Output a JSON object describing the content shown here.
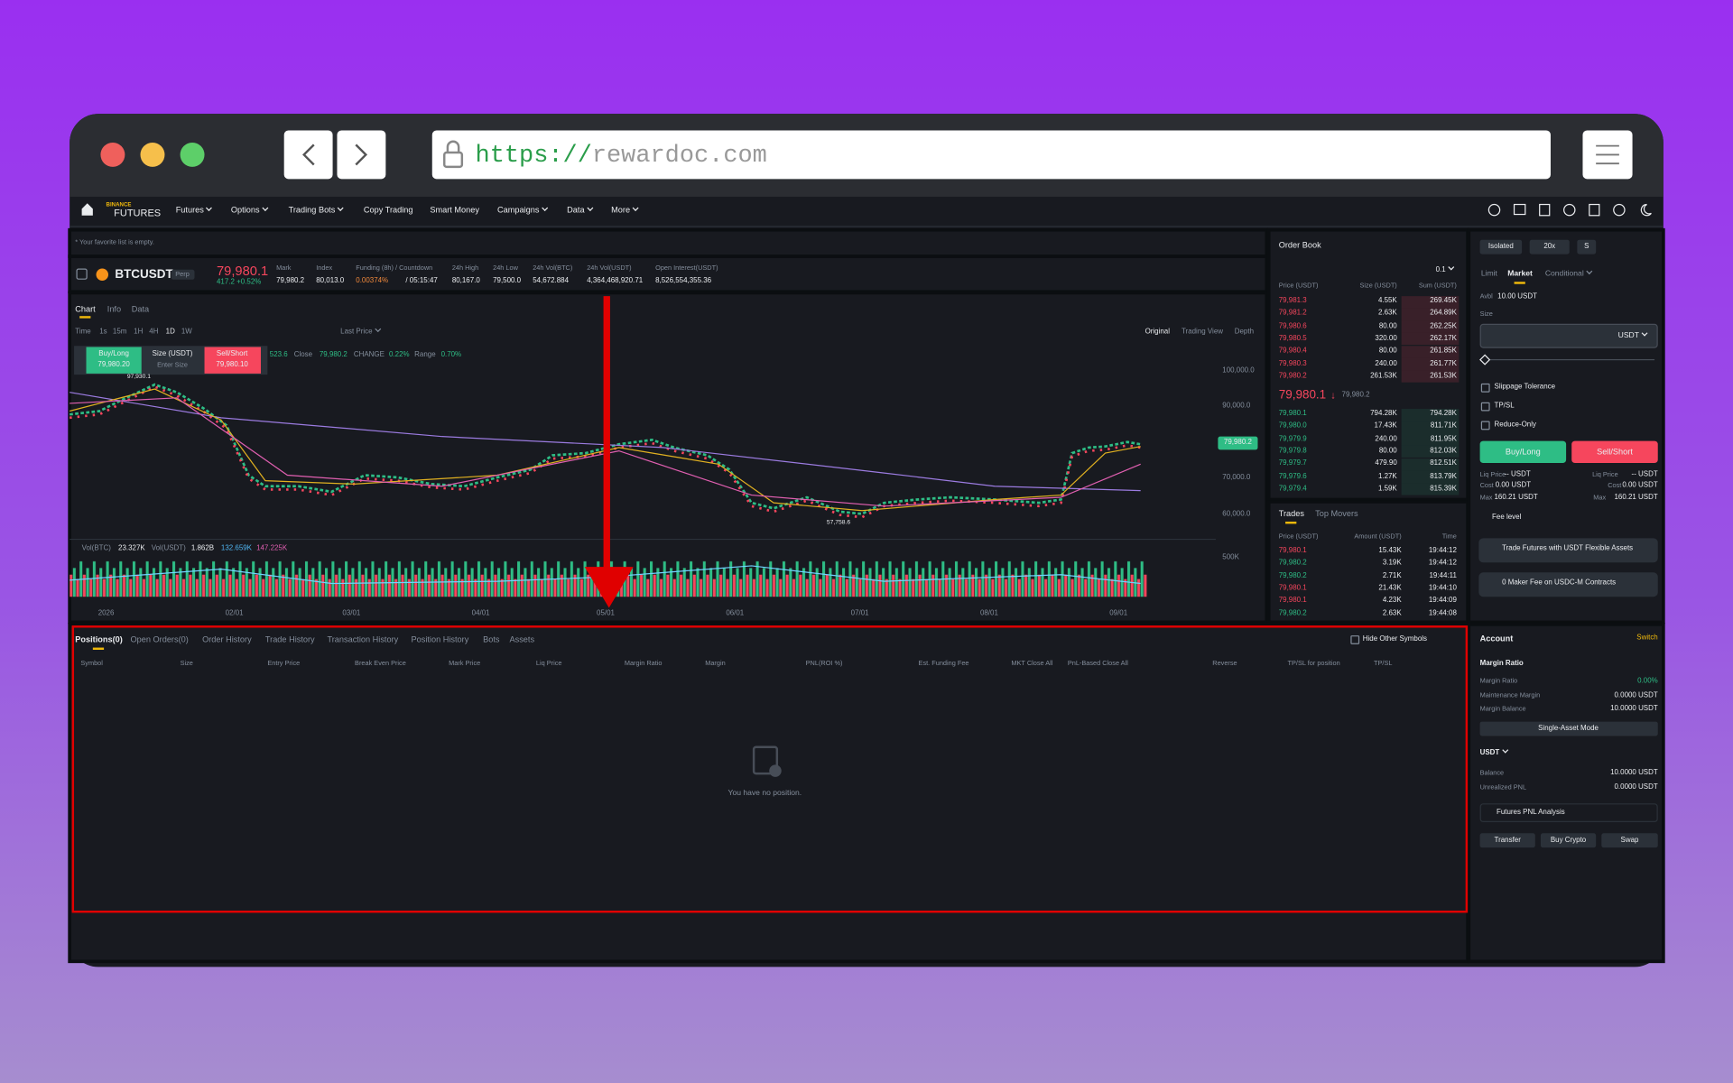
{
  "browser": {
    "url_scheme": "https://",
    "url_host": "rewardoc.com"
  },
  "nav": {
    "logo_top": "BINANCE",
    "logo_bottom": "FUTURES",
    "items": [
      "Futures",
      "Options",
      "Trading Bots",
      "Copy Trading",
      "Smart Money",
      "Campaigns",
      "Data",
      "More"
    ]
  },
  "favorites_note": "* Your favorite list is empty.",
  "ticker": {
    "symbol": "BTCUSDT",
    "badge": "Perp",
    "price": "79,980.1",
    "change": "417.2 +0.52%",
    "stats": [
      {
        "label": "Mark",
        "value": "79,980.2"
      },
      {
        "label": "Index",
        "value": "80,013.0"
      },
      {
        "label": "Funding (8h) / Countdown",
        "value": "0.00374%",
        "extra": "/ 05:15:47"
      },
      {
        "label": "24h High",
        "value": "80,167.0"
      },
      {
        "label": "24h Low",
        "value": "79,500.0"
      },
      {
        "label": "24h Vol(BTC)",
        "value": "54,672.884"
      },
      {
        "label": "24h Vol(USDT)",
        "value": "4,364,468,920.71"
      },
      {
        "label": "Open Interest(USDT)",
        "value": "8,526,554,355.36"
      }
    ]
  },
  "chart": {
    "tabs": [
      "Chart",
      "Info",
      "Data"
    ],
    "intervals": [
      "Time",
      "1s",
      "15m",
      "1H",
      "4H",
      "1D",
      "1W"
    ],
    "price_type": "Last Price",
    "views": [
      "Original",
      "Trading View",
      "Depth"
    ],
    "quick": {
      "buy": "Buy/Long",
      "buy_price": "79,980.20",
      "size": "Size (USDT)",
      "size_hint": "Enter Size",
      "sell": "Sell/Short",
      "sell_price": "79,980.10"
    },
    "ohlc": [
      "523.6",
      "Close",
      "79,980.2",
      "CHANGE",
      "0.22%",
      "Range",
      "0.70%"
    ],
    "high_label": "97,930.1",
    "low_label": "57,758.6",
    "last_badge": "79,980.2",
    "price_axis": [
      "100,000.0",
      "90,000.0",
      "70,000.0",
      "60,000.0"
    ],
    "volume_axis": "500K",
    "volume_legend": [
      "Vol(BTC)",
      "23.327K",
      "Vol(USDT)",
      "1.862B",
      "132.659K",
      "147.225K"
    ],
    "dates": [
      "2026",
      "02/01",
      "03/01",
      "04/01",
      "05/01",
      "06/01",
      "07/01",
      "08/01",
      "09/01"
    ]
  },
  "orderbook": {
    "title": "Order Book",
    "precision": "0.1",
    "headers": [
      "Price (USDT)",
      "Size (USDT)",
      "Sum (USDT)"
    ],
    "asks": [
      [
        "79,981.3",
        "4.55K",
        "269.45K"
      ],
      [
        "79,981.2",
        "2.63K",
        "264.89K"
      ],
      [
        "79,980.6",
        "80.00",
        "262.25K"
      ],
      [
        "79,980.5",
        "320.00",
        "262.17K"
      ],
      [
        "79,980.4",
        "80.00",
        "261.85K"
      ],
      [
        "79,980.3",
        "240.00",
        "261.77K"
      ],
      [
        "79,980.2",
        "261.53K",
        "261.53K"
      ]
    ],
    "mid": "79,980.1",
    "mid_arrow": "↓",
    "mid_mark": "79,980.2",
    "bids": [
      [
        "79,980.1",
        "794.28K",
        "794.28K"
      ],
      [
        "79,980.0",
        "17.43K",
        "811.71K"
      ],
      [
        "79,979.9",
        "240.00",
        "811.95K"
      ],
      [
        "79,979.8",
        "80.00",
        "812.03K"
      ],
      [
        "79,979.7",
        "479.90",
        "812.51K"
      ],
      [
        "79,979.6",
        "1.27K",
        "813.79K"
      ],
      [
        "79,979.4",
        "1.59K",
        "815.39K"
      ]
    ]
  },
  "trades": {
    "tabs": [
      "Trades",
      "Top Movers"
    ],
    "headers": [
      "Price (USDT)",
      "Amount (USDT)",
      "Time"
    ],
    "rows": [
      {
        "cells": [
          "79,980.1",
          "15.43K",
          "19:44:12"
        ],
        "color": "#f6465d"
      },
      {
        "cells": [
          "79,980.2",
          "3.19K",
          "19:44:12"
        ],
        "color": "#2ebd85"
      },
      {
        "cells": [
          "79,980.2",
          "2.71K",
          "19:44:11"
        ],
        "color": "#2ebd85"
      },
      {
        "cells": [
          "79,980.1",
          "21.43K",
          "19:44:10"
        ],
        "color": "#f6465d"
      },
      {
        "cells": [
          "79,980.1",
          "4.23K",
          "19:44:09"
        ],
        "color": "#f6465d"
      },
      {
        "cells": [
          "79,980.2",
          "2.63K",
          "19:44:08"
        ],
        "color": "#2ebd85"
      }
    ]
  },
  "positions": {
    "tabs": [
      "Positions(0)",
      "Open Orders(0)",
      "Order History",
      "Trade History",
      "Transaction History",
      "Position History",
      "Bots",
      "Assets"
    ],
    "hide_other": "Hide Other Symbols",
    "columns": [
      "Symbol",
      "Size",
      "Entry Price",
      "Break Even Price",
      "Mark Price",
      "Liq Price",
      "Margin Ratio",
      "Margin",
      "PNL(ROI %)",
      "Est. Funding Fee",
      "MKT Close All",
      "PnL-Based Close All",
      "Reverse",
      "TP/SL for position",
      "TP/SL"
    ],
    "empty": "You have no position."
  },
  "order": {
    "margin_mode": "Isolated",
    "leverage": "20x",
    "asset_mode": "S",
    "types": [
      "Limit",
      "Market",
      "Conditional"
    ],
    "avbl_label": "Avbl",
    "avbl": "10.00 USDT",
    "size_label": "Size",
    "unit": "USDT",
    "checks": [
      "Slippage Tolerance",
      "TP/SL",
      "Reduce-Only"
    ],
    "buy": "Buy/Long",
    "sell": "Sell/Short",
    "info": [
      [
        "Liq Price",
        "-- USDT"
      ],
      [
        "Cost",
        "0.00 USDT"
      ],
      [
        "Max",
        "160.21 USDT"
      ]
    ],
    "fee": "Fee level",
    "promos": [
      "Trade Futures with USDT Flexible Assets",
      "0 Maker Fee on USDC-M Contracts"
    ]
  },
  "account": {
    "title": "Account",
    "switch": "Switch",
    "margin_heading": "Margin Ratio",
    "margin_rows": [
      [
        "Margin Ratio",
        "0.00%"
      ],
      [
        "Maintenance Margin",
        "0.0000 USDT"
      ],
      [
        "Margin Balance",
        "10.0000 USDT"
      ]
    ],
    "mode": "Single-Asset Mode",
    "asset": "USDT",
    "balance_rows": [
      [
        "Balance",
        "10.0000 USDT"
      ],
      [
        "Unrealized PNL",
        "0.0000 USDT"
      ]
    ],
    "pnl": "Futures PNL Analysis",
    "buttons": [
      "Transfer",
      "Buy Crypto",
      "Swap"
    ]
  }
}
